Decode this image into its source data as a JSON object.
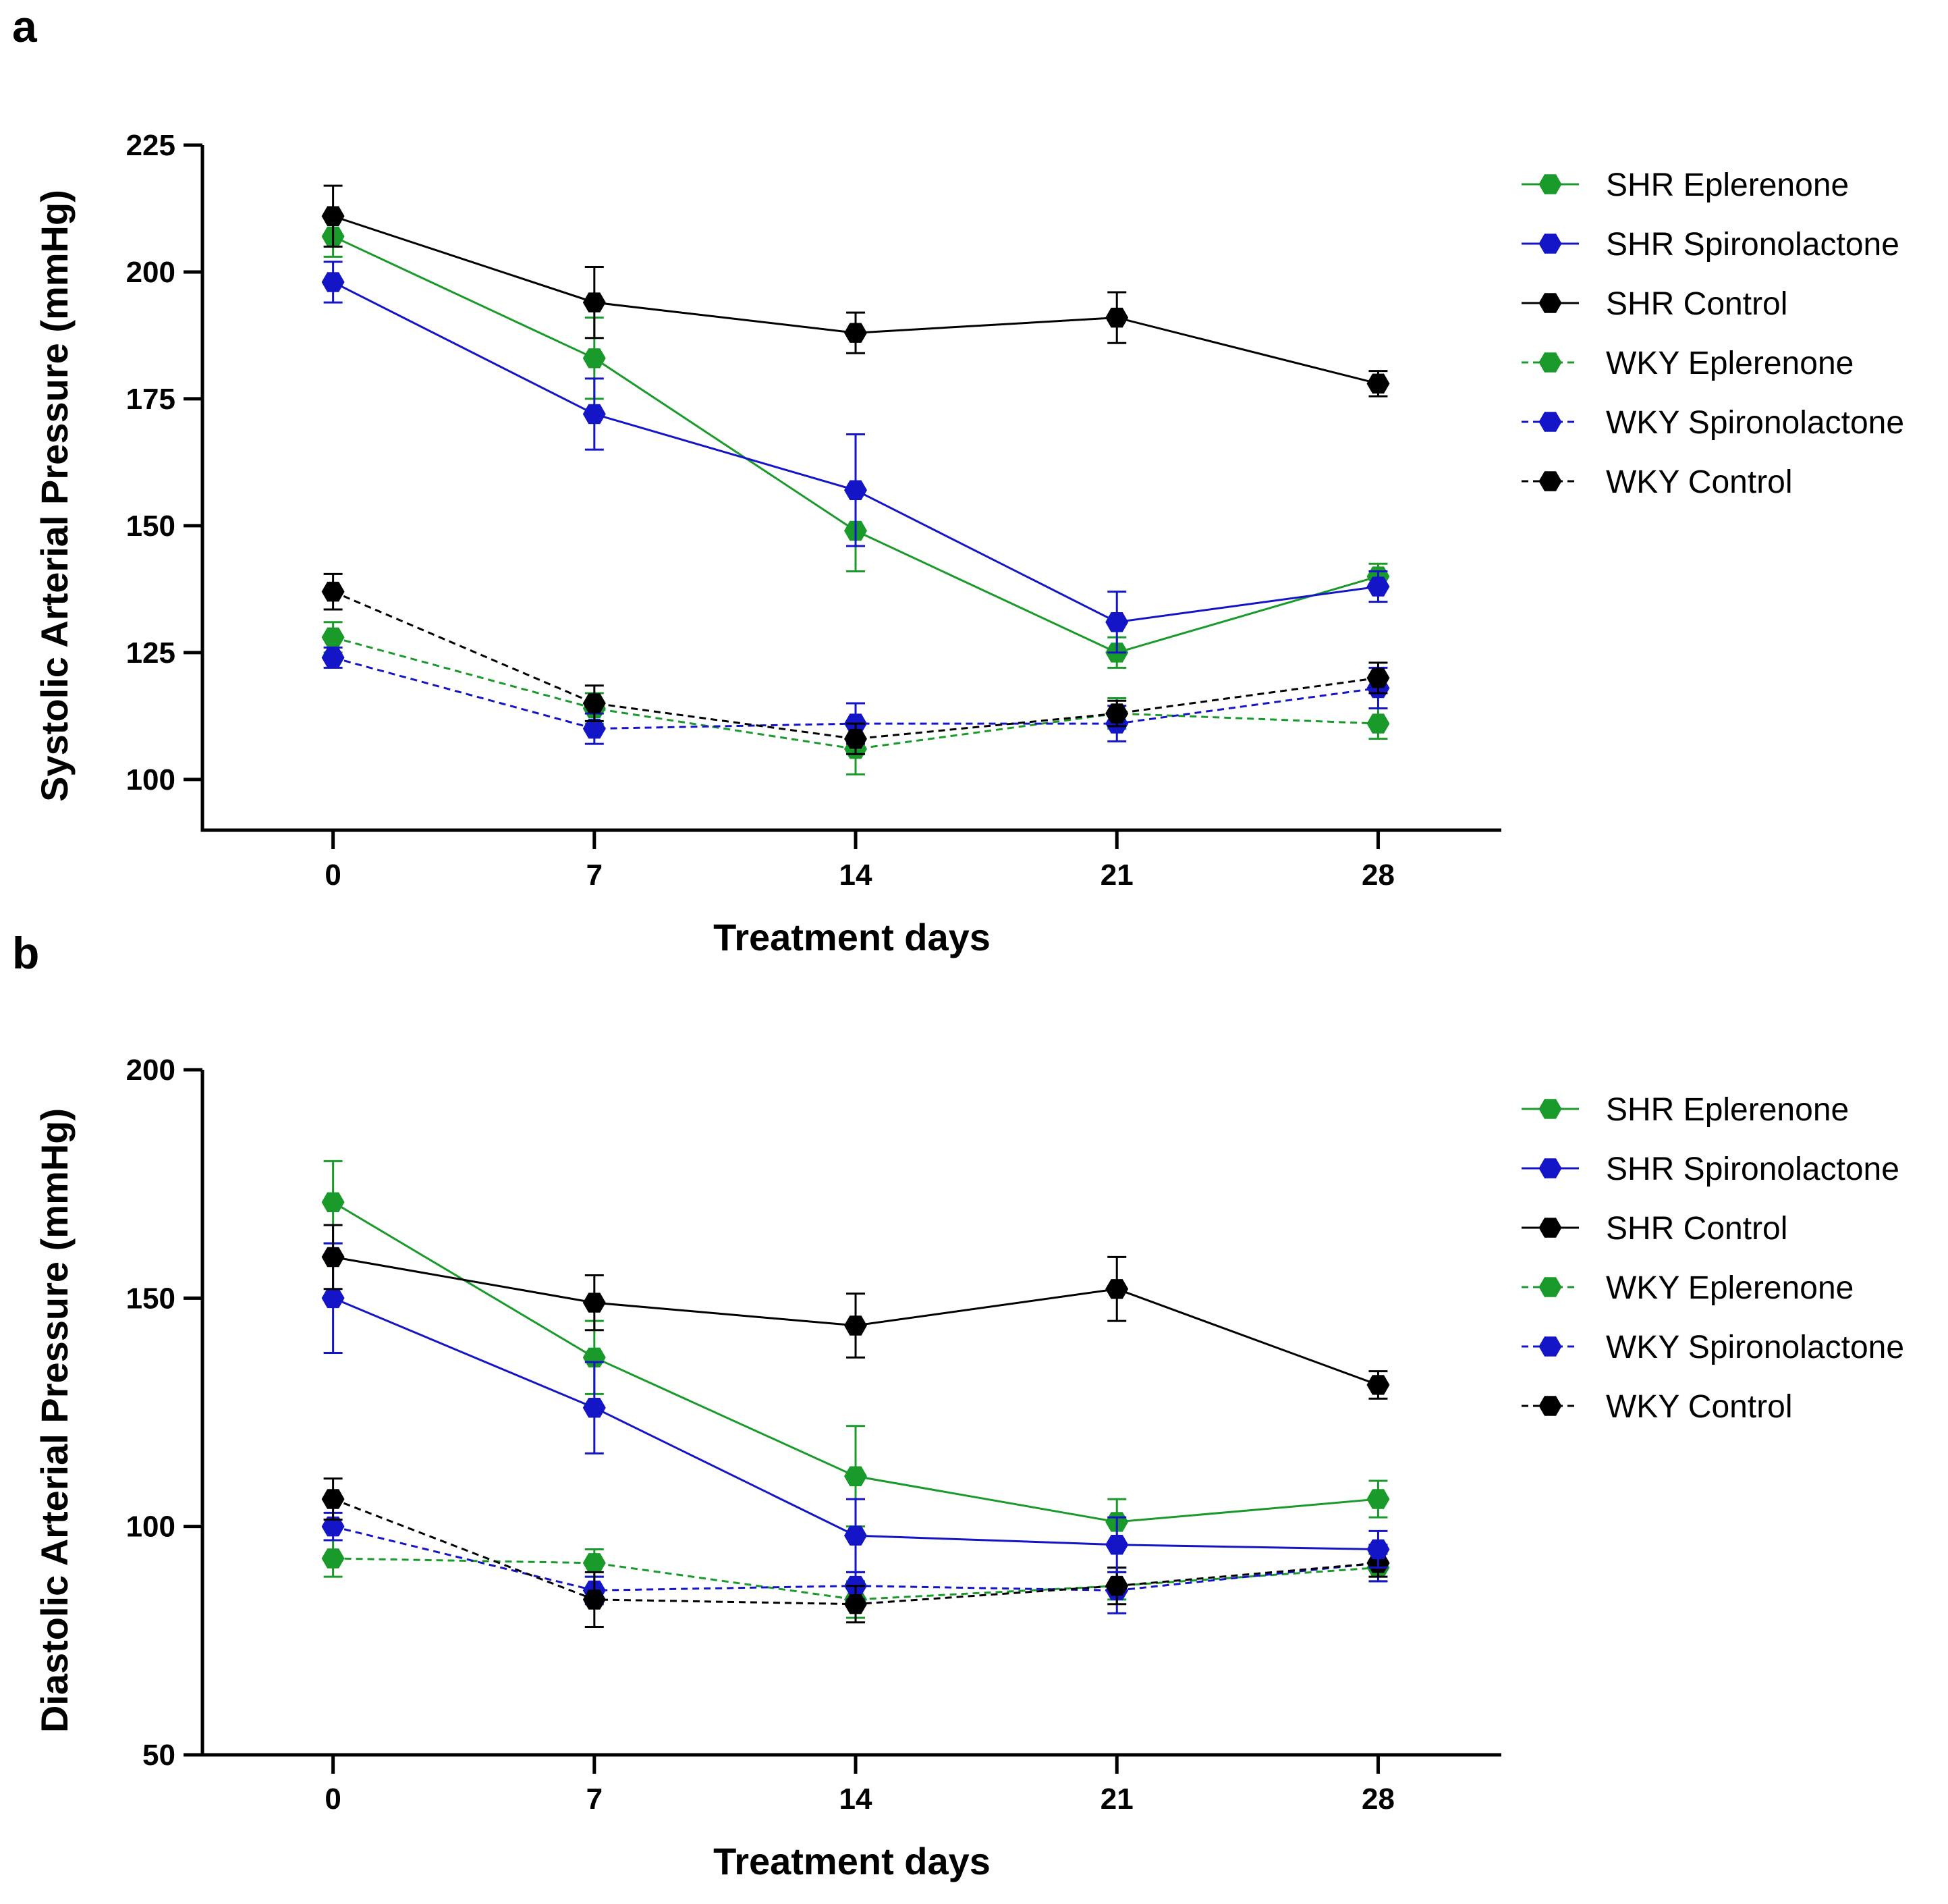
{
  "chart_data": [
    {
      "panel": "a",
      "type": "line",
      "xlabel": "Treatment days",
      "ylabel": "Systolic Arterial Pressure (mmHg)",
      "x": [
        0,
        7,
        14,
        21,
        28
      ],
      "x_ticks": [
        "0",
        "7",
        "14",
        "21",
        "28"
      ],
      "ylim": [
        90,
        225
      ],
      "y_ticks": [
        "100",
        "125",
        "150",
        "175",
        "200",
        "225"
      ],
      "legend_position": "right",
      "series": [
        {
          "name": "SHR Eplerenone",
          "color": "#1a9a2a",
          "dashed": false,
          "values": [
            207,
            183,
            149,
            125,
            140
          ],
          "errors": [
            4,
            8,
            8,
            3,
            2.5
          ]
        },
        {
          "name": "SHR Spironolactone",
          "color": "#1515c8",
          "dashed": false,
          "values": [
            198,
            172,
            157,
            131,
            138
          ],
          "errors": [
            4,
            7,
            11,
            6,
            3
          ]
        },
        {
          "name": "SHR Control",
          "color": "#000000",
          "dashed": false,
          "values": [
            211,
            194,
            188,
            191,
            178
          ],
          "errors": [
            6,
            7,
            4,
            5,
            2.5
          ]
        },
        {
          "name": "WKY Eplerenone",
          "color": "#1a9a2a",
          "dashed": true,
          "values": [
            128,
            114,
            106,
            113,
            111
          ],
          "errors": [
            3,
            3,
            5,
            3,
            3
          ]
        },
        {
          "name": "WKY Spironolactone",
          "color": "#1515c8",
          "dashed": true,
          "values": [
            124,
            110,
            111,
            111,
            118
          ],
          "errors": [
            2,
            3,
            4,
            3.5,
            4
          ]
        },
        {
          "name": "WKY Control",
          "color": "#000000",
          "dashed": true,
          "values": [
            137,
            115,
            108,
            113,
            120
          ],
          "errors": [
            3.5,
            3.5,
            3,
            2.5,
            3
          ]
        }
      ]
    },
    {
      "panel": "b",
      "type": "line",
      "xlabel": "Treatment days",
      "ylabel": "Diastolic Arterial Pressure (mmHg)",
      "x": [
        0,
        7,
        14,
        21,
        28
      ],
      "x_ticks": [
        "0",
        "7",
        "14",
        "21",
        "28"
      ],
      "ylim": [
        50,
        200
      ],
      "y_ticks": [
        "50",
        "100",
        "150",
        "200"
      ],
      "legend_position": "right",
      "series": [
        {
          "name": "SHR Eplerenone",
          "color": "#1a9a2a",
          "dashed": false,
          "values": [
            171,
            137,
            111,
            101,
            106
          ],
          "errors": [
            9,
            8,
            11,
            5,
            4
          ]
        },
        {
          "name": "SHR Spironolactone",
          "color": "#1515c8",
          "dashed": false,
          "values": [
            150,
            126,
            98,
            96,
            95
          ],
          "errors": [
            12,
            10,
            8,
            6,
            4
          ]
        },
        {
          "name": "SHR Control",
          "color": "#000000",
          "dashed": false,
          "values": [
            159,
            149,
            144,
            152,
            131
          ],
          "errors": [
            7,
            6,
            7,
            7,
            3
          ]
        },
        {
          "name": "WKY Eplerenone",
          "color": "#1a9a2a",
          "dashed": true,
          "values": [
            93,
            92,
            84,
            87,
            91
          ],
          "errors": [
            4,
            3,
            4,
            3,
            3
          ]
        },
        {
          "name": "WKY Spironolactone",
          "color": "#1515c8",
          "dashed": true,
          "values": [
            100,
            86,
            87,
            86,
            92
          ],
          "errors": [
            3,
            3,
            3,
            5,
            4
          ]
        },
        {
          "name": "WKY Control",
          "color": "#000000",
          "dashed": true,
          "values": [
            106,
            84,
            83,
            87,
            92
          ],
          "errors": [
            4.5,
            6,
            4,
            4,
            3
          ]
        }
      ]
    }
  ]
}
